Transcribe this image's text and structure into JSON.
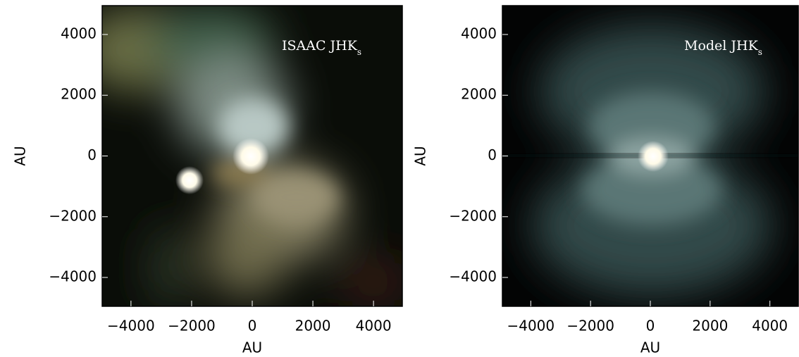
{
  "chart_data": [
    {
      "type": "image",
      "annotation": {
        "text": "ISAAC JHK",
        "sub": "s"
      },
      "xlabel": "AU",
      "ylabel": "AU",
      "xlim": [
        -4950,
        4950
      ],
      "ylim": [
        -4950,
        4950
      ],
      "xticks": [
        {
          "value": -4000,
          "label": "−4000"
        },
        {
          "value": -2000,
          "label": "−2000"
        },
        0,
        2000,
        4000
      ],
      "yticks": [
        {
          "value": -4000,
          "label": "−4000"
        },
        {
          "value": -2000,
          "label": "−2000"
        },
        0,
        2000,
        4000
      ]
    },
    {
      "type": "image",
      "annotation": {
        "text": "Model JHK",
        "sub": "s"
      },
      "xlabel": "AU",
      "ylabel": "AU",
      "xlim": [
        -4950,
        4950
      ],
      "ylim": [
        -4950,
        4950
      ],
      "xticks": [
        {
          "value": -4000,
          "label": "−4000"
        },
        {
          "value": -2000,
          "label": "−2000"
        },
        0,
        2000,
        4000
      ],
      "yticks": [
        {
          "value": -4000,
          "label": "−4000"
        },
        {
          "value": -2000,
          "label": "−2000"
        },
        0,
        2000,
        4000
      ]
    }
  ]
}
